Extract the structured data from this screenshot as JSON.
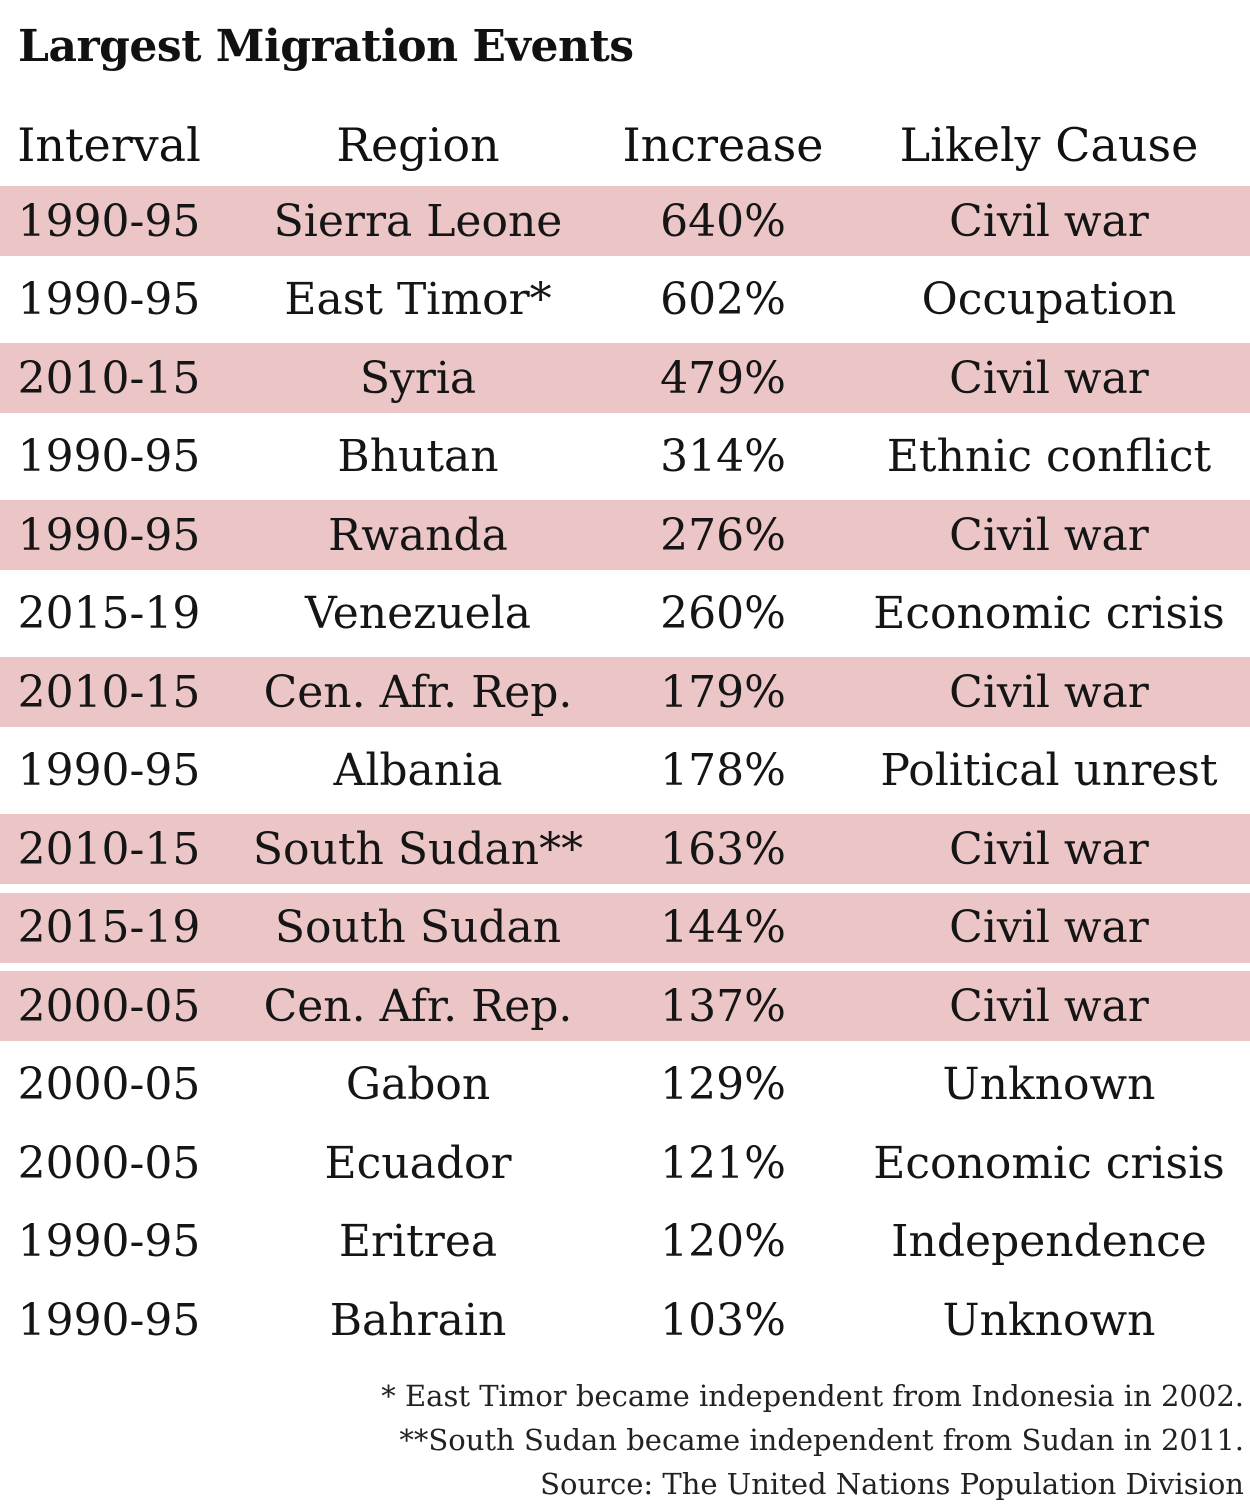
{
  "title": "Largest Migration Events",
  "headers": {
    "interval": "Interval",
    "region": "Region",
    "increase": "Increase",
    "cause": "Likely Cause"
  },
  "colors": {
    "row_highlight": "#ecc6c7",
    "text": "#151515"
  },
  "chart_data": {
    "type": "table",
    "title": "Largest Migration Events",
    "columns": [
      "Interval",
      "Region",
      "Increase",
      "Likely Cause"
    ],
    "rows": [
      {
        "interval": "1990-95",
        "region": "Sierra Leone",
        "increase": "640%",
        "cause": "Civil war",
        "highlighted": true
      },
      {
        "interval": "1990-95",
        "region": "East Timor*",
        "increase": "602%",
        "cause": "Occupation",
        "highlighted": false
      },
      {
        "interval": "2010-15",
        "region": "Syria",
        "increase": "479%",
        "cause": "Civil war",
        "highlighted": true
      },
      {
        "interval": "1990-95",
        "region": "Bhutan",
        "increase": "314%",
        "cause": "Ethnic conflict",
        "highlighted": false
      },
      {
        "interval": "1990-95",
        "region": "Rwanda",
        "increase": "276%",
        "cause": "Civil war",
        "highlighted": true
      },
      {
        "interval": "2015-19",
        "region": "Venezuela",
        "increase": "260%",
        "cause": "Economic crisis",
        "highlighted": false
      },
      {
        "interval": "2010-15",
        "region": "Cen. Afr. Rep.",
        "increase": "179%",
        "cause": "Civil war",
        "highlighted": true
      },
      {
        "interval": "1990-95",
        "region": "Albania",
        "increase": "178%",
        "cause": "Political unrest",
        "highlighted": false
      },
      {
        "interval": "2010-15",
        "region": "South Sudan**",
        "increase": "163%",
        "cause": "Civil war",
        "highlighted": true
      },
      {
        "interval": "2015-19",
        "region": "South Sudan",
        "increase": "144%",
        "cause": "Civil war",
        "highlighted": true
      },
      {
        "interval": "2000-05",
        "region": "Cen. Afr. Rep.",
        "increase": "137%",
        "cause": "Civil war",
        "highlighted": true
      },
      {
        "interval": "2000-05",
        "region": "Gabon",
        "increase": "129%",
        "cause": "Unknown",
        "highlighted": false
      },
      {
        "interval": "2000-05",
        "region": "Ecuador",
        "increase": "121%",
        "cause": "Economic crisis",
        "highlighted": false
      },
      {
        "interval": "1990-95",
        "region": "Eritrea",
        "increase": "120%",
        "cause": "Independence",
        "highlighted": false
      },
      {
        "interval": "1990-95",
        "region": "Bahrain",
        "increase": "103%",
        "cause": "Unknown",
        "highlighted": false
      }
    ]
  },
  "notes": [
    "* East Timor became independent from Indonesia in 2002.",
    "**South Sudan became independent from Sudan in 2011.",
    "Source: The United Nations Population Division"
  ]
}
